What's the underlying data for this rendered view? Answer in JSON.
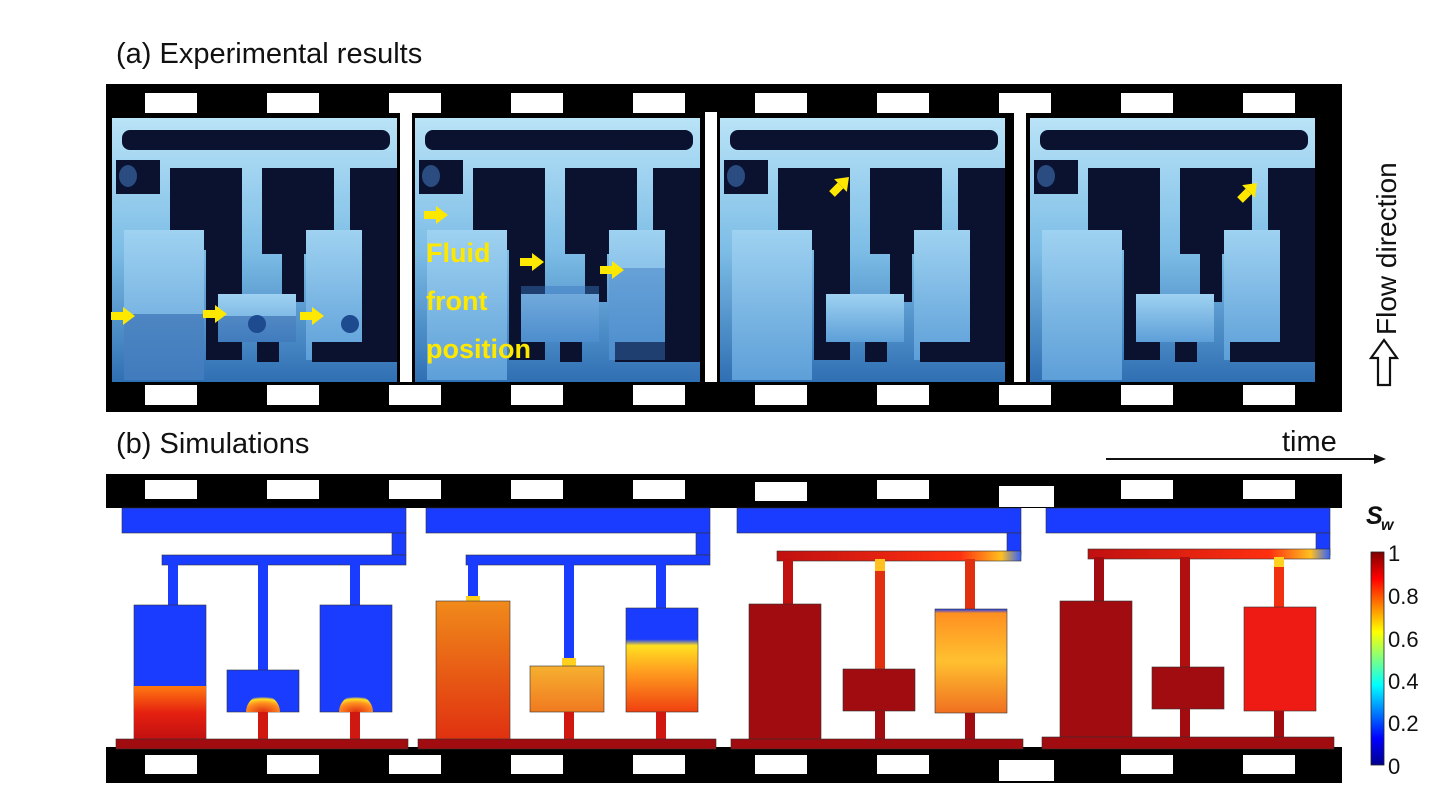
{
  "figure": {
    "panel_a_title": "(a) Experimental results",
    "panel_b_title": "(b) Simulations",
    "flow_label": "Flow direction",
    "time_label": "time",
    "annotation_lines": [
      "Fluid",
      "front",
      "position"
    ],
    "colorbar": {
      "symbol": "S",
      "subscript": "w",
      "ticks": [
        "1",
        "0.8",
        "0.6",
        "0.4",
        "0.2",
        "0"
      ],
      "colormap": "jet"
    }
  },
  "colors": {
    "film": "#000000",
    "arrow": "#ffe800",
    "annotation": "#ffe800",
    "sim_blue": "#1a3cff",
    "sim_red": "#a00c10"
  }
}
